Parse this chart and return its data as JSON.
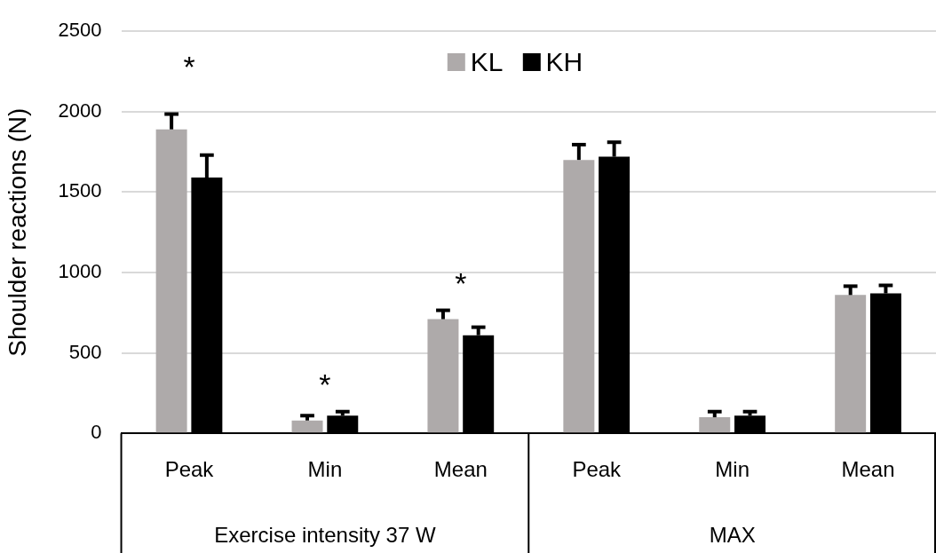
{
  "chart_data": {
    "type": "bar",
    "ylabel": "Shoulder reactions (N)",
    "categories": [
      "Peak",
      "Min",
      "Mean",
      "Peak",
      "Min",
      "Mean"
    ],
    "series": [
      {
        "name": "KL",
        "color": "#aeaaaa",
        "values": [
          1890,
          80,
          710,
          1700,
          100,
          860
        ],
        "errors": [
          [
            1890,
            1985
          ],
          [
            80,
            110
          ],
          [
            710,
            765
          ],
          [
            1700,
            1795
          ],
          [
            100,
            135
          ],
          [
            860,
            915
          ]
        ]
      },
      {
        "name": "KH",
        "color": "#000000",
        "values": [
          1590,
          110,
          610,
          1720,
          110,
          870
        ],
        "errors": [
          [
            1590,
            1730
          ],
          [
            110,
            135
          ],
          [
            610,
            660
          ],
          [
            1720,
            1810
          ],
          [
            110,
            135
          ],
          [
            870,
            920
          ]
        ]
      }
    ],
    "ylim": [
      0,
      2500
    ],
    "yticks": [
      0,
      500,
      1000,
      1500,
      2000,
      2500
    ],
    "grid": "y",
    "legend": "top",
    "annotations": [
      "*",
      "*",
      "*",
      "Exercise intensity 37 W",
      "MAX"
    ]
  }
}
